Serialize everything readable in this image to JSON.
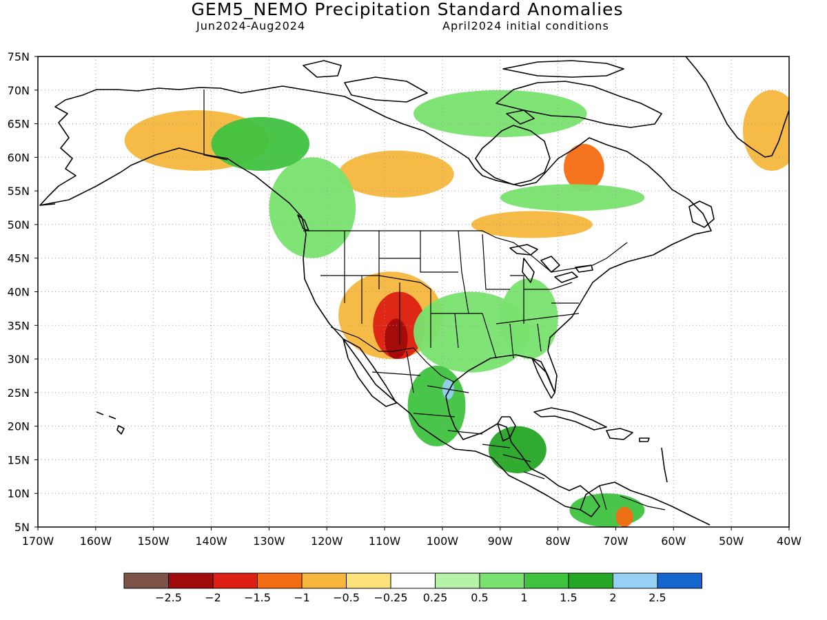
{
  "title": "GEM5_NEMO Precipitation Standard Anomalies",
  "subtitle_left": "Jun2024-Aug2024",
  "subtitle_right": "April2024 initial conditions",
  "map": {
    "lat_labels": [
      "75N",
      "70N",
      "65N",
      "60N",
      "55N",
      "50N",
      "45N",
      "40N",
      "35N",
      "30N",
      "25N",
      "20N",
      "15N",
      "10N",
      "5N"
    ],
    "lon_labels": [
      "170W",
      "160W",
      "150W",
      "140W",
      "130W",
      "120W",
      "110W",
      "100W",
      "90W",
      "80W",
      "70W",
      "60W",
      "50W",
      "40W"
    ]
  },
  "colorbar": {
    "colors": [
      "#7d5248",
      "#a10a0a",
      "#dc1f12",
      "#f56d12",
      "#f6b73c",
      "#fde27a",
      "#ffffff",
      "#b6f3a8",
      "#79e26f",
      "#3fc23f",
      "#25a625",
      "#96d1f5",
      "#1565cf"
    ],
    "labels": [
      "−2.5",
      "−2",
      "−1.5",
      "−1",
      "−0.5",
      "−0.25",
      "0.25",
      "0.5",
      "1",
      "1.5",
      "2",
      "2.5"
    ]
  },
  "regions": [
    {
      "name": "dry-southwest-us",
      "color": "#f6b73c",
      "lon": [
        -118,
        -100
      ],
      "lat": [
        30,
        43
      ]
    },
    {
      "name": "very-dry-southwest-core",
      "color": "#dc1f12",
      "lon": [
        -112,
        -103
      ],
      "lat": [
        30,
        40
      ]
    },
    {
      "name": "extreme-dry-sonora",
      "color": "#a10a0a",
      "lon": [
        -110,
        -106
      ],
      "lat": [
        30,
        36
      ]
    },
    {
      "name": "dry-central-canada",
      "color": "#f6b73c",
      "lon": [
        -118,
        -98
      ],
      "lat": [
        54,
        61
      ]
    },
    {
      "name": "dry-ontario-band",
      "color": "#f6b73c",
      "lon": [
        -95,
        -74
      ],
      "lat": [
        48,
        52
      ]
    },
    {
      "name": "dry-labrador",
      "color": "#f56d12",
      "lon": [
        -79,
        -72
      ],
      "lat": [
        55,
        62
      ]
    },
    {
      "name": "dry-alaska",
      "color": "#f6b73c",
      "lon": [
        -155,
        -130
      ],
      "lat": [
        58,
        67
      ]
    },
    {
      "name": "dry-greenland-south",
      "color": "#f6b73c",
      "lon": [
        -48,
        -38
      ],
      "lat": [
        58,
        70
      ]
    },
    {
      "name": "wet-pacific-nw",
      "color": "#79e26f",
      "lon": [
        -130,
        -115
      ],
      "lat": [
        45,
        60
      ]
    },
    {
      "name": "wet-central-us",
      "color": "#79e26f",
      "lon": [
        -105,
        -85
      ],
      "lat": [
        28,
        40
      ]
    },
    {
      "name": "wet-southeast-us",
      "color": "#79e26f",
      "lon": [
        -90,
        -80
      ],
      "lat": [
        30,
        42
      ]
    },
    {
      "name": "wet-mexico",
      "color": "#3fc23f",
      "lon": [
        -106,
        -96
      ],
      "lat": [
        17,
        29
      ]
    },
    {
      "name": "wet-yukon",
      "color": "#3fc23f",
      "lon": [
        -140,
        -123
      ],
      "lat": [
        58,
        66
      ]
    },
    {
      "name": "wet-quebec",
      "color": "#79e26f",
      "lon": [
        -90,
        -65
      ],
      "lat": [
        52,
        56
      ]
    },
    {
      "name": "wet-central-america",
      "color": "#25a625",
      "lon": [
        -92,
        -82
      ],
      "lat": [
        13,
        20
      ]
    },
    {
      "name": "wet-colombia",
      "color": "#3fc23f",
      "lon": [
        -78,
        -65
      ],
      "lat": [
        5,
        10
      ]
    },
    {
      "name": "wet-nunavut",
      "color": "#79e26f",
      "lon": [
        -105,
        -75
      ],
      "lat": [
        63,
        70
      ]
    },
    {
      "name": "very-wet-texas-coast",
      "color": "#96d1f5",
      "lon": [
        -100,
        -98
      ],
      "lat": [
        24,
        27
      ]
    },
    {
      "name": "dry-venezuela",
      "color": "#f56d12",
      "lon": [
        -70,
        -67
      ],
      "lat": [
        5,
        8
      ]
    }
  ]
}
